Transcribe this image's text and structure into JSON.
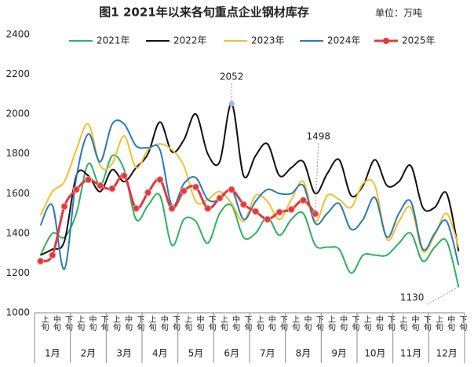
{
  "chart_data": {
    "type": "line",
    "title": "图1 2021年以来各旬重点企业钢材库存",
    "unit": "单位：万吨",
    "categories": [
      "上旬",
      "中旬",
      "下旬",
      "上旬",
      "中旬",
      "下旬",
      "上旬",
      "中旬",
      "下旬",
      "上旬",
      "中旬",
      "下旬",
      "上旬",
      "中旬",
      "下旬",
      "上旬",
      "中旬",
      "下旬",
      "上旬",
      "中旬",
      "下旬",
      "上旬",
      "中旬",
      "下旬",
      "上旬",
      "中旬",
      "下旬",
      "上旬",
      "中旬",
      "下旬",
      "上旬",
      "中旬",
      "下旬",
      "上旬",
      "中旬",
      "下旬"
    ],
    "months": [
      "1月",
      "2月",
      "3月",
      "4月",
      "5月",
      "6月",
      "7月",
      "8月",
      "9月",
      "10月",
      "11月",
      "12月"
    ],
    "ylim": [
      1000,
      2400
    ],
    "yticks": [
      1000,
      1200,
      1400,
      1600,
      1800,
      2000,
      2200,
      2400
    ],
    "grid": false,
    "series": [
      {
        "name": "2021年",
        "color": "#2db35d",
        "values": [
          1290,
          1400,
          1380,
          1500,
          1750,
          1640,
          1790,
          1720,
          1470,
          1540,
          1590,
          1340,
          1470,
          1460,
          1350,
          1500,
          1540,
          1380,
          1400,
          1480,
          1390,
          1470,
          1500,
          1340,
          1330,
          1320,
          1200,
          1290,
          1290,
          1290,
          1350,
          1400,
          1260,
          1330,
          1360,
          1130
        ]
      },
      {
        "name": "2022年",
        "color": "#111111",
        "values": [
          1290,
          1320,
          1360,
          1690,
          1690,
          1610,
          1720,
          1660,
          1730,
          1800,
          1960,
          1810,
          1870,
          2000,
          1800,
          1760,
          2052,
          1690,
          1790,
          1850,
          1690,
          1730,
          1760,
          1600,
          1700,
          1770,
          1590,
          1640,
          1770,
          1640,
          1660,
          1740,
          1530,
          1530,
          1600,
          1310
        ]
      },
      {
        "name": "2023年",
        "color": "#f0c030",
        "values": [
          1490,
          1610,
          1660,
          1820,
          1950,
          1740,
          1750,
          1890,
          1730,
          1820,
          1850,
          1820,
          1740,
          1560,
          1570,
          1610,
          1550,
          1460,
          1590,
          1560,
          1470,
          1570,
          1660,
          1460,
          1590,
          1570,
          1530,
          1650,
          1640,
          1370,
          1460,
          1530,
          1310,
          1390,
          1500,
          1330
        ]
      },
      {
        "name": "2024年",
        "color": "#2a7ab8",
        "values": [
          1440,
          1540,
          1220,
          1680,
          1900,
          1760,
          1950,
          1950,
          1840,
          1830,
          1820,
          1540,
          1650,
          1680,
          1570,
          1570,
          1620,
          1470,
          1560,
          1620,
          1600,
          1600,
          1640,
          1450,
          1500,
          1550,
          1420,
          1470,
          1580,
          1380,
          1500,
          1560,
          1320,
          1400,
          1460,
          1240
        ]
      },
      {
        "name": "2025年",
        "color": "#e03a3e",
        "markers": true,
        "values": [
          1260,
          1290,
          1535,
          1620,
          1670,
          1640,
          1625,
          1690,
          1525,
          1605,
          1670,
          1525,
          1613,
          1633,
          1525,
          1577,
          1620,
          1545,
          1510,
          1470,
          1506,
          1520,
          1566,
          1498,
          null,
          null,
          null,
          null,
          null,
          null,
          null,
          null,
          null,
          null,
          null,
          null
        ]
      }
    ]
  }
}
